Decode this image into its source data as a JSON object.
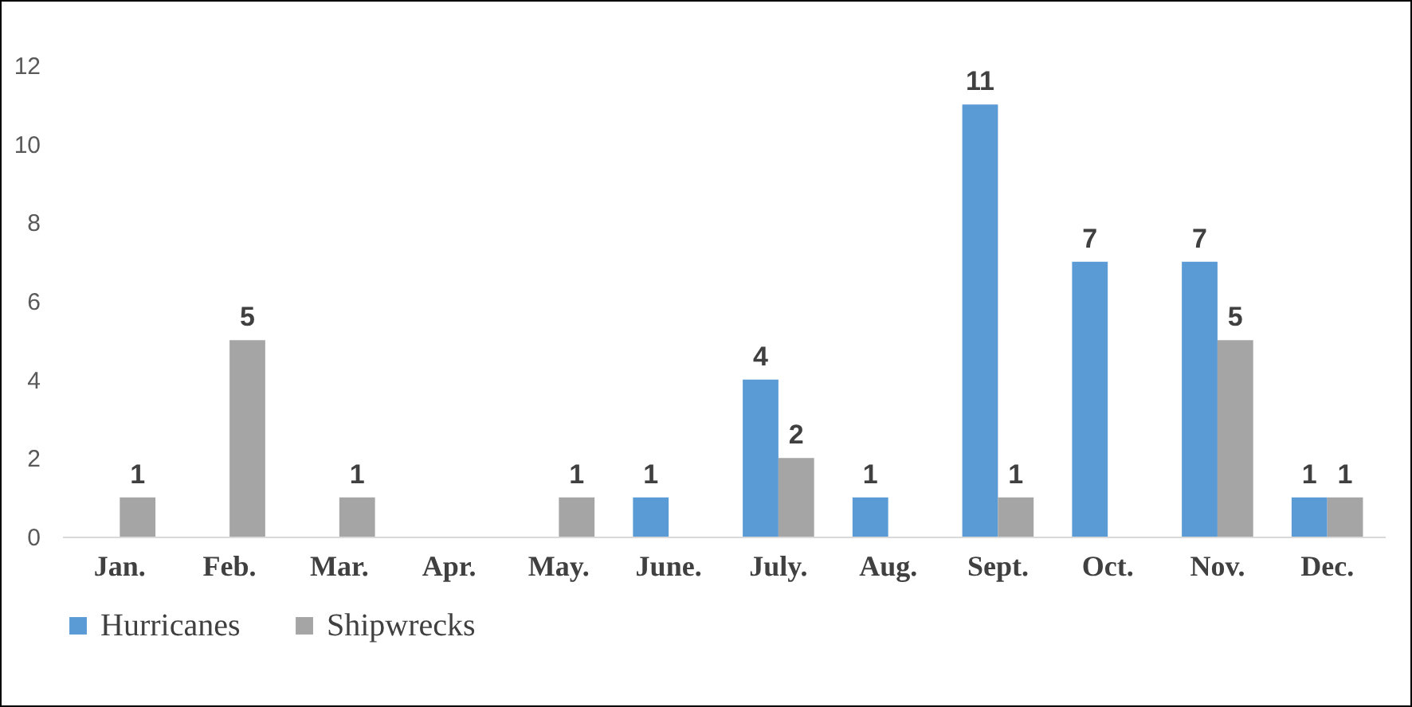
{
  "chart_data": {
    "type": "bar",
    "categories": [
      "Jan.",
      "Feb.",
      "Mar.",
      "Apr.",
      "May.",
      "June.",
      "July.",
      "Aug.",
      "Sept.",
      "Oct.",
      "Nov.",
      "Dec."
    ],
    "series": [
      {
        "name": "Hurricanes",
        "color": "#5b9bd5",
        "values": [
          0,
          0,
          0,
          0,
          0,
          1,
          4,
          1,
          11,
          7,
          7,
          1
        ],
        "value_labels": [
          null,
          null,
          null,
          null,
          null,
          "1",
          "4",
          "1",
          "11",
          "7",
          "7",
          "1"
        ]
      },
      {
        "name": "Shipwrecks",
        "color": "#a5a5a5",
        "values": [
          1,
          5,
          1,
          0,
          1,
          0,
          2,
          0,
          1,
          0,
          5,
          1
        ],
        "value_labels": [
          "1",
          "5",
          "1",
          null,
          "1",
          null,
          "2",
          null,
          "1",
          null,
          "5",
          "1"
        ]
      }
    ],
    "ylim": [
      0,
      12
    ],
    "yticks": [
      0,
      2,
      4,
      6,
      8,
      10,
      12
    ],
    "grid": false,
    "legend": "bottom"
  }
}
